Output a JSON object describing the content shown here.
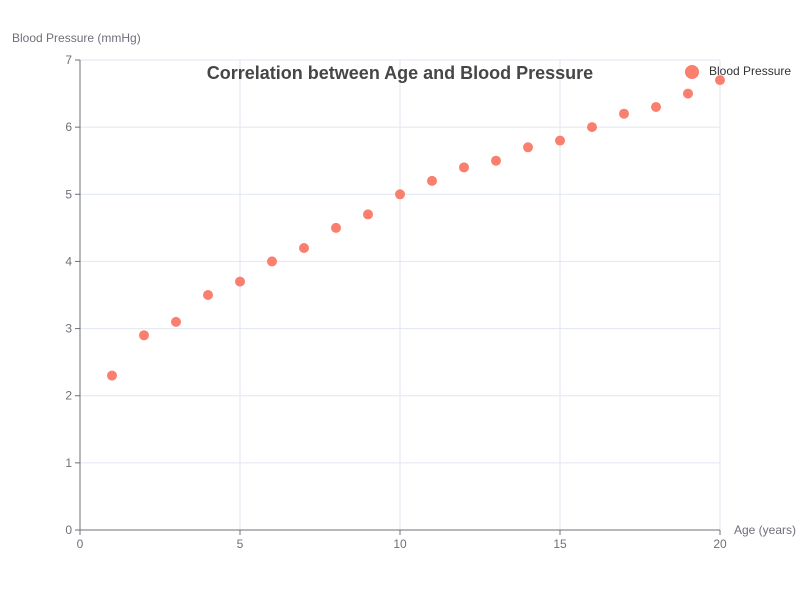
{
  "chart_data": {
    "type": "scatter",
    "title": "Correlation between Age and Blood Pressure",
    "xlabel": "Age (years)",
    "ylabel": "Blood Pressure (mmHg)",
    "xlim": [
      0,
      20
    ],
    "ylim": [
      0,
      7
    ],
    "x_ticks": [
      0,
      5,
      10,
      15,
      20
    ],
    "y_ticks": [
      0,
      1,
      2,
      3,
      4,
      5,
      6,
      7
    ],
    "grid": true,
    "legend_position": "top-right",
    "series": [
      {
        "name": "Blood Pressure",
        "color": "#fa7f6f",
        "points": [
          {
            "x": 1,
            "y": 2.3
          },
          {
            "x": 2,
            "y": 2.9
          },
          {
            "x": 3,
            "y": 3.1
          },
          {
            "x": 4,
            "y": 3.5
          },
          {
            "x": 5,
            "y": 3.7
          },
          {
            "x": 6,
            "y": 4.0
          },
          {
            "x": 7,
            "y": 4.2
          },
          {
            "x": 8,
            "y": 4.5
          },
          {
            "x": 9,
            "y": 4.7
          },
          {
            "x": 10,
            "y": 5.0
          },
          {
            "x": 11,
            "y": 5.2
          },
          {
            "x": 12,
            "y": 5.4
          },
          {
            "x": 13,
            "y": 5.5
          },
          {
            "x": 14,
            "y": 5.7
          },
          {
            "x": 15,
            "y": 5.8
          },
          {
            "x": 16,
            "y": 6.0
          },
          {
            "x": 17,
            "y": 6.2
          },
          {
            "x": 18,
            "y": 6.3
          },
          {
            "x": 19,
            "y": 6.5
          },
          {
            "x": 20,
            "y": 6.7
          }
        ]
      }
    ]
  }
}
